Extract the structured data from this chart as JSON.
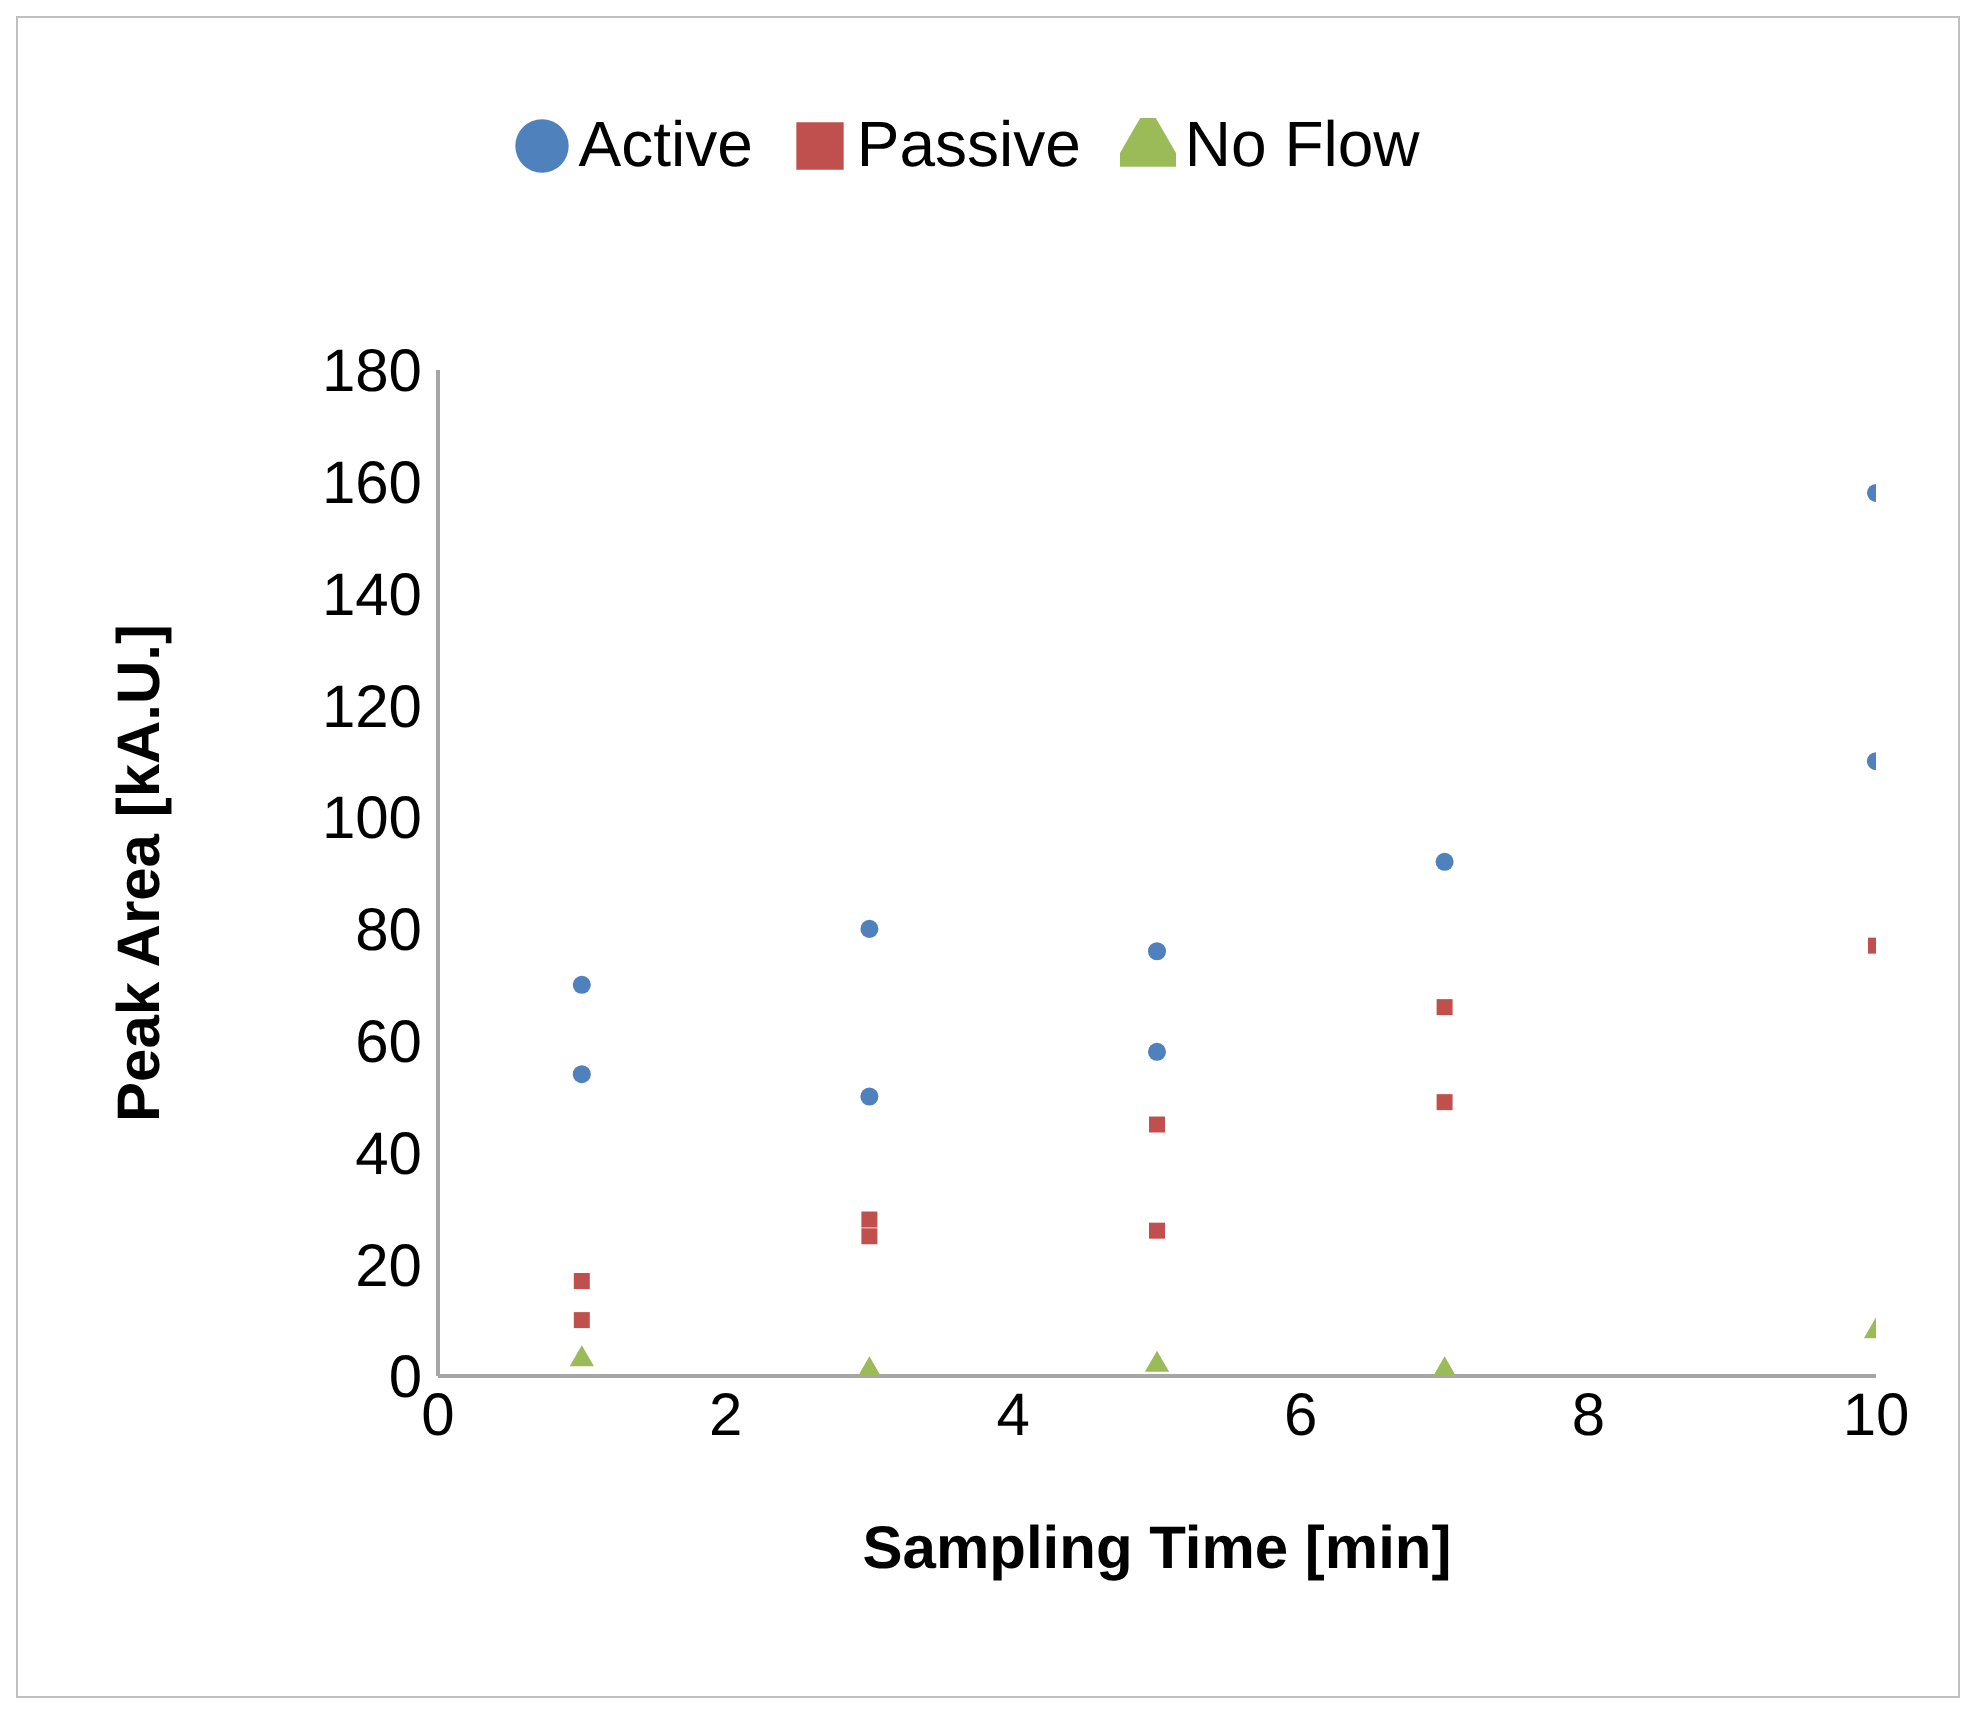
{
  "chart_data": {
    "type": "scatter",
    "xlabel": "Sampling Time [min]",
    "ylabel": "Peak Area [kA.U.]",
    "xlim": [
      0,
      10
    ],
    "xticks": [
      0,
      2,
      4,
      6,
      8,
      10
    ],
    "ylim": [
      0,
      180
    ],
    "yticks": [
      0,
      20,
      40,
      60,
      80,
      100,
      120,
      140,
      160,
      180
    ],
    "grid": false,
    "legend": "top",
    "series": [
      {
        "name": "Active",
        "color": "#4f81bd",
        "marker": "circle",
        "x": [
          1,
          1,
          3,
          3,
          5,
          5,
          7,
          10,
          10
        ],
        "values": [
          70,
          54,
          80,
          50,
          76,
          58,
          92,
          158,
          110
        ]
      },
      {
        "name": "Passive",
        "color": "#c0504d",
        "marker": "square",
        "x": [
          1,
          1,
          3,
          3,
          5,
          5,
          7,
          7,
          10
        ],
        "values": [
          17,
          10,
          28,
          25,
          45,
          26,
          66,
          49,
          77
        ]
      },
      {
        "name": "No Flow",
        "color": "#9bbb59",
        "marker": "triangle",
        "x": [
          1,
          3,
          5,
          7,
          10
        ],
        "values": [
          3,
          1,
          2,
          1,
          8
        ]
      }
    ]
  }
}
